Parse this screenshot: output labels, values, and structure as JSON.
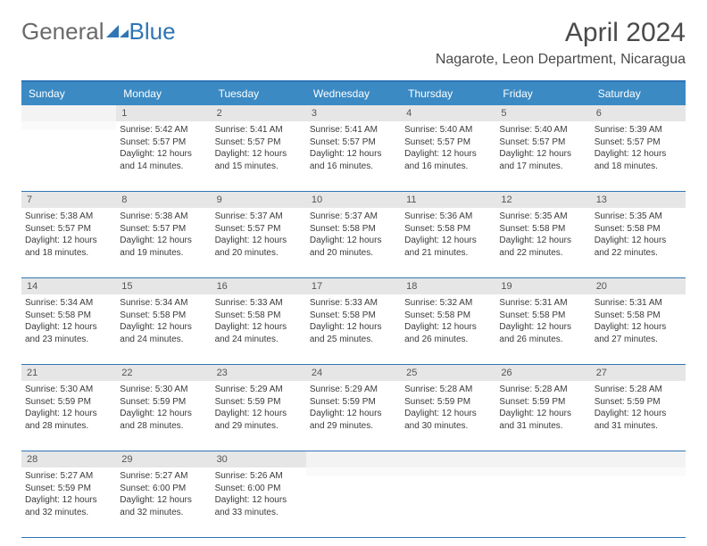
{
  "logo": {
    "text1": "General",
    "text2": "Blue"
  },
  "title": "April 2024",
  "location": "Nagarote, Leon Department, Nicaragua",
  "colors": {
    "header_bg": "#3b8ac4",
    "border": "#2f75b5",
    "daynum_bg": "#e6e6e6"
  },
  "dow": [
    "Sunday",
    "Monday",
    "Tuesday",
    "Wednesday",
    "Thursday",
    "Friday",
    "Saturday"
  ],
  "weeks": [
    [
      null,
      {
        "n": "1",
        "sr": "5:42 AM",
        "ss": "5:57 PM",
        "dl": "12 hours and 14 minutes."
      },
      {
        "n": "2",
        "sr": "5:41 AM",
        "ss": "5:57 PM",
        "dl": "12 hours and 15 minutes."
      },
      {
        "n": "3",
        "sr": "5:41 AM",
        "ss": "5:57 PM",
        "dl": "12 hours and 16 minutes."
      },
      {
        "n": "4",
        "sr": "5:40 AM",
        "ss": "5:57 PM",
        "dl": "12 hours and 16 minutes."
      },
      {
        "n": "5",
        "sr": "5:40 AM",
        "ss": "5:57 PM",
        "dl": "12 hours and 17 minutes."
      },
      {
        "n": "6",
        "sr": "5:39 AM",
        "ss": "5:57 PM",
        "dl": "12 hours and 18 minutes."
      }
    ],
    [
      {
        "n": "7",
        "sr": "5:38 AM",
        "ss": "5:57 PM",
        "dl": "12 hours and 18 minutes."
      },
      {
        "n": "8",
        "sr": "5:38 AM",
        "ss": "5:57 PM",
        "dl": "12 hours and 19 minutes."
      },
      {
        "n": "9",
        "sr": "5:37 AM",
        "ss": "5:57 PM",
        "dl": "12 hours and 20 minutes."
      },
      {
        "n": "10",
        "sr": "5:37 AM",
        "ss": "5:58 PM",
        "dl": "12 hours and 20 minutes."
      },
      {
        "n": "11",
        "sr": "5:36 AM",
        "ss": "5:58 PM",
        "dl": "12 hours and 21 minutes."
      },
      {
        "n": "12",
        "sr": "5:35 AM",
        "ss": "5:58 PM",
        "dl": "12 hours and 22 minutes."
      },
      {
        "n": "13",
        "sr": "5:35 AM",
        "ss": "5:58 PM",
        "dl": "12 hours and 22 minutes."
      }
    ],
    [
      {
        "n": "14",
        "sr": "5:34 AM",
        "ss": "5:58 PM",
        "dl": "12 hours and 23 minutes."
      },
      {
        "n": "15",
        "sr": "5:34 AM",
        "ss": "5:58 PM",
        "dl": "12 hours and 24 minutes."
      },
      {
        "n": "16",
        "sr": "5:33 AM",
        "ss": "5:58 PM",
        "dl": "12 hours and 24 minutes."
      },
      {
        "n": "17",
        "sr": "5:33 AM",
        "ss": "5:58 PM",
        "dl": "12 hours and 25 minutes."
      },
      {
        "n": "18",
        "sr": "5:32 AM",
        "ss": "5:58 PM",
        "dl": "12 hours and 26 minutes."
      },
      {
        "n": "19",
        "sr": "5:31 AM",
        "ss": "5:58 PM",
        "dl": "12 hours and 26 minutes."
      },
      {
        "n": "20",
        "sr": "5:31 AM",
        "ss": "5:58 PM",
        "dl": "12 hours and 27 minutes."
      }
    ],
    [
      {
        "n": "21",
        "sr": "5:30 AM",
        "ss": "5:59 PM",
        "dl": "12 hours and 28 minutes."
      },
      {
        "n": "22",
        "sr": "5:30 AM",
        "ss": "5:59 PM",
        "dl": "12 hours and 28 minutes."
      },
      {
        "n": "23",
        "sr": "5:29 AM",
        "ss": "5:59 PM",
        "dl": "12 hours and 29 minutes."
      },
      {
        "n": "24",
        "sr": "5:29 AM",
        "ss": "5:59 PM",
        "dl": "12 hours and 29 minutes."
      },
      {
        "n": "25",
        "sr": "5:28 AM",
        "ss": "5:59 PM",
        "dl": "12 hours and 30 minutes."
      },
      {
        "n": "26",
        "sr": "5:28 AM",
        "ss": "5:59 PM",
        "dl": "12 hours and 31 minutes."
      },
      {
        "n": "27",
        "sr": "5:28 AM",
        "ss": "5:59 PM",
        "dl": "12 hours and 31 minutes."
      }
    ],
    [
      {
        "n": "28",
        "sr": "5:27 AM",
        "ss": "5:59 PM",
        "dl": "12 hours and 32 minutes."
      },
      {
        "n": "29",
        "sr": "5:27 AM",
        "ss": "6:00 PM",
        "dl": "12 hours and 32 minutes."
      },
      {
        "n": "30",
        "sr": "5:26 AM",
        "ss": "6:00 PM",
        "dl": "12 hours and 33 minutes."
      },
      null,
      null,
      null,
      null
    ]
  ],
  "labels": {
    "sunrise": "Sunrise:",
    "sunset": "Sunset:",
    "daylight": "Daylight:"
  }
}
